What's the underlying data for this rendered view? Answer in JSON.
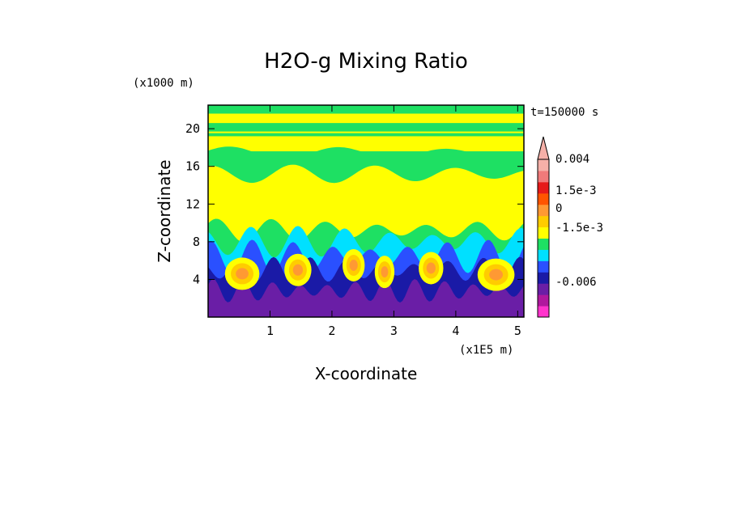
{
  "chart_data": {
    "type": "heatmap",
    "title": "H2O-g Mixing Ratio",
    "xlabel": "X-coordinate",
    "ylabel": "Z-coordinate",
    "x_units": "(x1E5 m)",
    "y_units": "(x1000 m)",
    "time_label": "t=150000 s",
    "xlim": [
      0,
      5.1
    ],
    "ylim": [
      0,
      22.5
    ],
    "x_ticks": [
      1,
      2,
      3,
      4,
      5
    ],
    "y_ticks": [
      4,
      8,
      12,
      16,
      20
    ],
    "colorbar": {
      "colors": [
        "#ff33cc",
        "#b0189e",
        "#6a1ea6",
        "#1a1aa6",
        "#2a50ff",
        "#00e0ff",
        "#1ee063",
        "#ffff00",
        "#ffcc00",
        "#ff9933",
        "#ff5500",
        "#e61a1a",
        "#f07a7a",
        "#f5b0a8"
      ],
      "labels": [
        {
          "text": "0.004",
          "level": 0.004
        },
        {
          "text": "1.5e-3",
          "level": 0.0015
        },
        {
          "text": "0",
          "level": 0
        },
        {
          "text": "-1.5e-3",
          "level": -0.0015
        },
        {
          "text": "-0.006",
          "level": -0.006
        }
      ],
      "extend": "top"
    },
    "field": {
      "description_levels": "bands by height",
      "bands": [
        {
          "z": [
            0,
            3
          ],
          "dominant": "#6a1ea6"
        },
        {
          "z": [
            3,
            6
          ],
          "dominant": "#1a1aa6"
        },
        {
          "z": [
            6,
            9
          ],
          "dominant": "#00e0ff"
        },
        {
          "z": [
            9,
            15
          ],
          "dominant": "#ffff00"
        },
        {
          "z": [
            15,
            18
          ],
          "dominant": "#1ee063"
        },
        {
          "z": [
            18,
            22.5
          ],
          "dominant": "#ffff00"
        }
      ]
    }
  }
}
